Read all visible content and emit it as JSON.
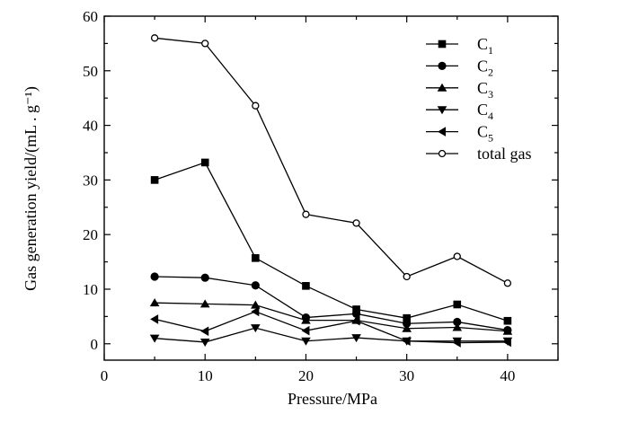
{
  "chart_data": {
    "type": "line",
    "xlabel": "Pressure/MPa",
    "ylabel": "Gas generation yield/(mL . g⁻¹)",
    "xlim": [
      0,
      45
    ],
    "ylim": [
      -3,
      60
    ],
    "x_ticks": [
      0,
      10,
      20,
      30,
      40
    ],
    "y_ticks": [
      0,
      10,
      20,
      30,
      40,
      50,
      60
    ],
    "legend_position": "top-right",
    "x": [
      5,
      10,
      15,
      20,
      25,
      30,
      35,
      40
    ],
    "series": [
      {
        "name": "C",
        "subscript": "1",
        "marker": "square",
        "values": [
          30.0,
          33.2,
          15.7,
          10.6,
          6.3,
          4.7,
          7.2,
          4.2
        ]
      },
      {
        "name": "C",
        "subscript": "2",
        "marker": "circle",
        "values": [
          12.3,
          12.1,
          10.7,
          4.8,
          5.5,
          3.7,
          4.0,
          2.5
        ]
      },
      {
        "name": "C",
        "subscript": "3",
        "marker": "triangle-up",
        "values": [
          7.5,
          7.3,
          7.1,
          4.3,
          4.3,
          2.8,
          3.0,
          2.3
        ]
      },
      {
        "name": "C",
        "subscript": "4",
        "marker": "triangle-down",
        "values": [
          1.0,
          0.3,
          2.9,
          0.5,
          1.1,
          0.5,
          0.5,
          0.5
        ]
      },
      {
        "name": "C",
        "subscript": "5",
        "marker": "triangle-left",
        "values": [
          4.5,
          2.3,
          5.9,
          2.4,
          4.2,
          0.5,
          0.2,
          0.3
        ]
      },
      {
        "name": "total gas",
        "subscript": "",
        "marker": "circle-open",
        "values": [
          56.0,
          55.0,
          43.6,
          23.7,
          22.1,
          12.3,
          16.0,
          11.1
        ]
      }
    ]
  }
}
